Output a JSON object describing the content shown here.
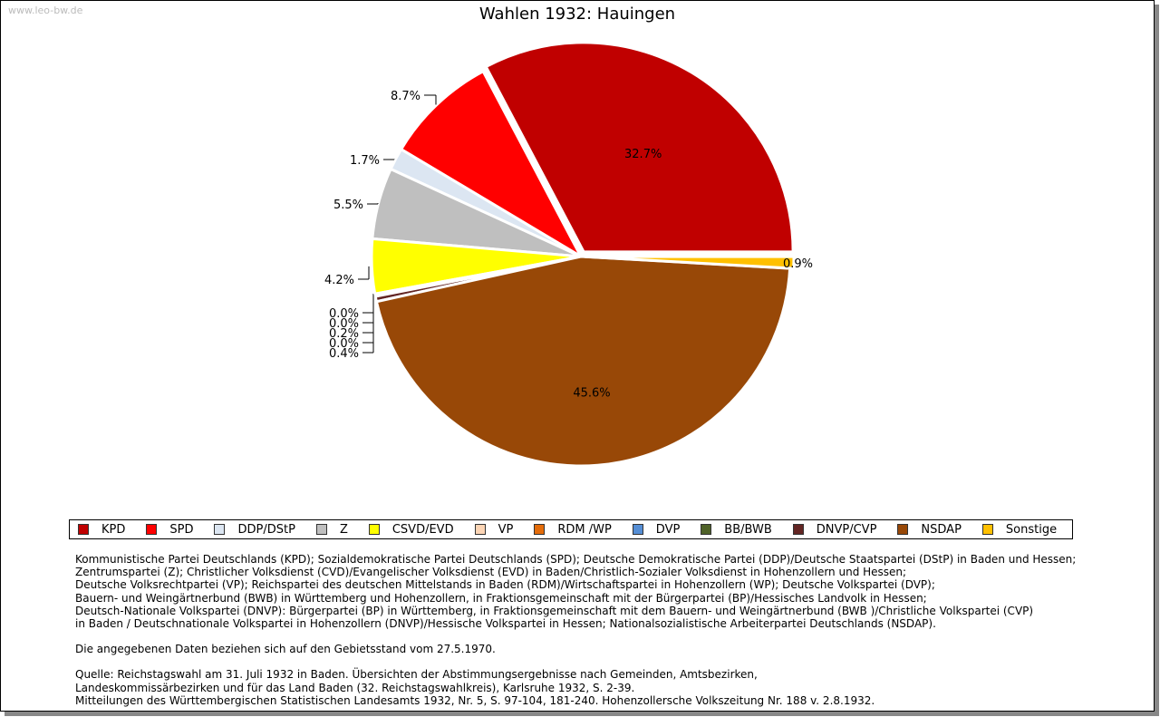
{
  "watermark": "www.leo-bw.de",
  "chart_data": {
    "type": "pie",
    "title": "Wahlen 1932: Hauingen",
    "slices": [
      {
        "name": "KPD",
        "value": 32.7,
        "label": "32.7%",
        "color": "#c00000"
      },
      {
        "name": "SPD",
        "value": 8.7,
        "label": "8.7%",
        "color": "#ff0000"
      },
      {
        "name": "DDP/DStP",
        "value": 1.7,
        "label": "1.7%",
        "color": "#dce6f2"
      },
      {
        "name": "Z",
        "value": 5.5,
        "label": "5.5%",
        "color": "#bfbfbf"
      },
      {
        "name": "CSVD/EVD",
        "value": 4.2,
        "label": "4.2%",
        "color": "#ffff00"
      },
      {
        "name": "VP",
        "value": 0.0,
        "label": "0.0%",
        "color": "#fcd5b5"
      },
      {
        "name": "RDM /WP",
        "value": 0.0,
        "label": "0.0%",
        "color": "#e46c0a"
      },
      {
        "name": "DVP",
        "value": 0.2,
        "label": "0.2%",
        "color": "#558ed5"
      },
      {
        "name": "BB/BWB",
        "value": 0.0,
        "label": "0.0%",
        "color": "#4f6228"
      },
      {
        "name": "DNVP/CVP",
        "value": 0.4,
        "label": "0.4%",
        "color": "#632523"
      },
      {
        "name": "NSDAP",
        "value": 45.6,
        "label": "45.6%",
        "color": "#984807"
      },
      {
        "name": "Sonstige",
        "value": 0.9,
        "label": "0.9%",
        "color": "#ffc000"
      }
    ],
    "legend_position": "bottom"
  },
  "notes": {
    "parties": [
      "Kommunistische Partei Deutschlands (KPD); Sozialdemokratische Partei Deutschlands (SPD); Deutsche Demokratische Partei (DDP)/Deutsche Staatspartei (DStP) in Baden und Hessen;",
      "Zentrumspartei (Z); Christlicher Volksdienst (CVD)/Evangelischer Volksdienst (EVD) in Baden/Christlich-Sozialer Volksdienst in Hohenzollern und Hessen;",
      "Deutsche Volksrechtpartei (VP); Reichspartei des deutschen Mittelstands in Baden (RDM)/Wirtschaftspartei in Hohenzollern (WP); Deutsche Volkspartei (DVP);",
      "Bauern- und Weingärtnerbund (BWB) in Württemberg und Hohenzollern, in Fraktionsgemeinschaft mit der Bürgerpartei (BP)/Hessisches Landvolk in Hessen;",
      "Deutsch-Nationale Volkspartei (DNVP): Bürgerpartei (BP) in Württemberg, in Fraktionsgemeinschaft mit dem Bauern- und Weingärtnerbund (BWB )/Christliche Volkspartei (CVP)",
      "in Baden / Deutschnationale Volkspartei in Hohenzollern (DNVP)/Hessische Volkspartei in Hessen; Nationalsozialistische Arbeiterpartei Deutschlands (NSDAP)."
    ],
    "territory": "Die angegebenen Daten beziehen sich auf den Gebietsstand vom 27.5.1970.",
    "source": [
      "Quelle: Reichstagswahl am 31. Juli 1932 in Baden. Übersichten der Abstimmungsergebnisse nach Gemeinden, Amtsbezirken,",
      "Landeskommissärbezirken und für das Land Baden (32. Reichstagswahlkreis), Karlsruhe 1932, S. 2-39.",
      "Mitteilungen des Württembergischen Statistischen Landesamts 1932, Nr. 5, S. 97-104, 181-240. Hohenzollersche Volkszeitung Nr. 188 v. 2.8.1932."
    ]
  }
}
